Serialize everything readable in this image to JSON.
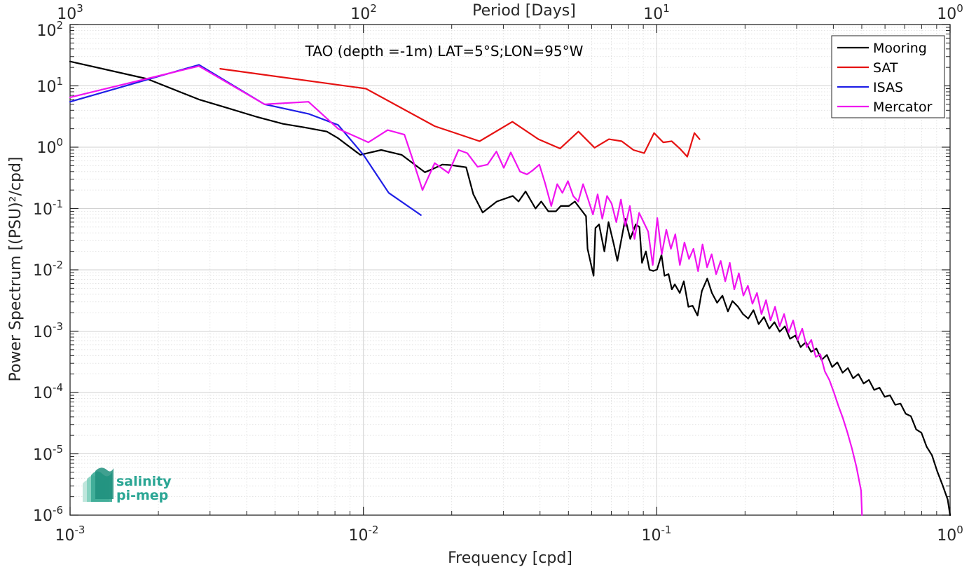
{
  "chart_data": {
    "type": "line",
    "title": "TAO (depth =-1m) LAT=5°S;LON=95°W",
    "xlabel": "Frequency [cpd]",
    "ylabel": "Power Spectrum [(PSU)²/cpd]",
    "top_xlabel": "Period [Days]",
    "xscale": "log",
    "yscale": "log",
    "xlim": [
      0.001,
      1
    ],
    "ylim": [
      1e-06,
      100
    ],
    "grid": true,
    "minor_grid": true,
    "legend_position": "top-right",
    "x_tick_labels": [
      {
        "base": "10",
        "exp": "-3"
      },
      {
        "base": "10",
        "exp": "-2"
      },
      {
        "base": "10",
        "exp": "-1"
      },
      {
        "base": "10",
        "exp": "0"
      }
    ],
    "top_tick_labels": [
      {
        "base": "10",
        "exp": "3"
      },
      {
        "base": "10",
        "exp": "2"
      },
      {
        "base": "10",
        "exp": "1"
      },
      {
        "base": "10",
        "exp": "0"
      }
    ],
    "y_tick_labels": [
      {
        "base": "10",
        "exp": "-6"
      },
      {
        "base": "10",
        "exp": "-5"
      },
      {
        "base": "10",
        "exp": "-4"
      },
      {
        "base": "10",
        "exp": "-3"
      },
      {
        "base": "10",
        "exp": "-2"
      },
      {
        "base": "10",
        "exp": "-1"
      },
      {
        "base": "10",
        "exp": "0"
      },
      {
        "base": "10",
        "exp": "1"
      },
      {
        "base": "10",
        "exp": "2"
      }
    ],
    "series": [
      {
        "name": "Mooring",
        "color": "#000000",
        "x": [
          0.001,
          0.00183,
          0.00275,
          0.00336,
          0.00435,
          0.00532,
          0.0063,
          0.0075,
          0.0082,
          0.00975,
          0.0115,
          0.0135,
          0.0162,
          0.0172,
          0.0186,
          0.0199,
          0.0224,
          0.0237,
          0.0255,
          0.0285,
          0.0323,
          0.0338,
          0.0357,
          0.0386,
          0.0404,
          0.0427,
          0.0453,
          0.0471,
          0.0502,
          0.0526,
          0.0548,
          0.0574,
          0.0581,
          0.0609,
          0.0618,
          0.0636,
          0.0663,
          0.0685,
          0.0714,
          0.0734,
          0.0753,
          0.0781,
          0.0812,
          0.0848,
          0.0873,
          0.0891,
          0.0918,
          0.0945,
          0.0973,
          0.1002,
          0.1038,
          0.1063,
          0.1097,
          0.1126,
          0.1152,
          0.1198,
          0.1237,
          0.1282,
          0.1325,
          0.1378,
          0.1425,
          0.1486,
          0.1542,
          0.1606,
          0.1675,
          0.1748,
          0.1812,
          0.1893,
          0.1968,
          0.2051,
          0.2137,
          0.2226,
          0.2321,
          0.2418,
          0.2519,
          0.2625,
          0.2734,
          0.2848,
          0.2968,
          0.3094,
          0.3224,
          0.3359,
          0.3501,
          0.3648,
          0.3802,
          0.3962,
          0.4128,
          0.4302,
          0.4484,
          0.4672,
          0.4869,
          0.5074,
          0.5288,
          0.5511,
          0.5743,
          0.5985,
          0.6237,
          0.65,
          0.6773,
          0.7058,
          0.7355,
          0.7664,
          0.7987,
          0.8323,
          0.8674,
          0.904,
          0.9421,
          0.9817,
          1.0
        ],
        "y": [
          25,
          13,
          6,
          4.5,
          3.1,
          2.4,
          2.1,
          1.8,
          1.4,
          0.75,
          0.9,
          0.75,
          0.39,
          0.44,
          0.52,
          0.51,
          0.47,
          0.17,
          0.086,
          0.13,
          0.16,
          0.13,
          0.19,
          0.1,
          0.13,
          0.09,
          0.09,
          0.11,
          0.11,
          0.13,
          0.1,
          0.075,
          0.022,
          0.008,
          0.048,
          0.055,
          0.02,
          0.06,
          0.026,
          0.014,
          0.027,
          0.068,
          0.032,
          0.055,
          0.05,
          0.013,
          0.02,
          0.01,
          0.0096,
          0.0101,
          0.0175,
          0.008,
          0.0085,
          0.0048,
          0.0058,
          0.0042,
          0.0065,
          0.0025,
          0.0026,
          0.0018,
          0.0045,
          0.0072,
          0.0042,
          0.0029,
          0.0038,
          0.0021,
          0.0031,
          0.0025,
          0.0019,
          0.0016,
          0.0022,
          0.0013,
          0.0017,
          0.0011,
          0.0014,
          0.00098,
          0.0012,
          0.00075,
          0.00085,
          0.00055,
          0.00066,
          0.00046,
          0.00052,
          0.00034,
          0.00041,
          0.00026,
          0.00031,
          0.00021,
          0.00025,
          0.00017,
          0.0002,
          0.00014,
          0.00016,
          0.00011,
          0.00012,
          8.5e-05,
          9e-05,
          6.3e-05,
          6.6e-05,
          4.5e-05,
          4.1e-05,
          2.5e-05,
          2.2e-05,
          1.3e-05,
          9.5e-06,
          5.2e-06,
          3.1e-06,
          1.8e-06,
          1e-06
        ]
      },
      {
        "name": "SAT",
        "color": "#e61212",
        "x": [
          0.00325,
          0.0102,
          0.0175,
          0.0249,
          0.0322,
          0.0395,
          0.0468,
          0.0541,
          0.0614,
          0.0687,
          0.076,
          0.0833,
          0.0906,
          0.0979,
          0.1052,
          0.1125,
          0.1198,
          0.1271,
          0.1344,
          0.14
        ],
        "y": [
          19,
          9.0,
          2.2,
          1.25,
          2.6,
          1.35,
          0.95,
          1.8,
          0.98,
          1.35,
          1.25,
          0.9,
          0.8,
          1.7,
          1.2,
          1.25,
          0.95,
          0.7,
          1.7,
          1.35
        ]
      },
      {
        "name": "ISAS",
        "color": "#1f1fe6",
        "x": [
          0.001,
          0.00275,
          0.0046,
          0.0065,
          0.0082,
          0.01,
          0.0122,
          0.0157
        ],
        "y": [
          5.5,
          22,
          5.0,
          3.5,
          2.3,
          0.75,
          0.18,
          0.078
        ]
      },
      {
        "name": "Mercator",
        "color": "#f014f0",
        "x": [
          0.001,
          0.00275,
          0.0046,
          0.0065,
          0.0082,
          0.0104,
          0.0121,
          0.0138,
          0.0147,
          0.0159,
          0.0175,
          0.0195,
          0.0211,
          0.0226,
          0.0245,
          0.0265,
          0.0284,
          0.0301,
          0.0318,
          0.0342,
          0.0361,
          0.0378,
          0.0398,
          0.0416,
          0.0437,
          0.0458,
          0.0477,
          0.0498,
          0.0519,
          0.054,
          0.0561,
          0.0584,
          0.0606,
          0.0629,
          0.0652,
          0.0677,
          0.0702,
          0.0728,
          0.0755,
          0.0782,
          0.081,
          0.084,
          0.0871,
          0.0902,
          0.0935,
          0.0969,
          0.1004,
          0.104,
          0.1078,
          0.1117,
          0.1157,
          0.1199,
          0.1243,
          0.1288,
          0.1334,
          0.1383,
          0.1433,
          0.1485,
          0.1539,
          0.1594,
          0.1652,
          0.1712,
          0.1774,
          0.1838,
          0.1905,
          0.1974,
          0.2045,
          0.2119,
          0.2196,
          0.2275,
          0.2358,
          0.2443,
          0.2531,
          0.2623,
          0.2718,
          0.2816,
          0.2918,
          0.3024,
          0.3133,
          0.3246,
          0.3364,
          0.3485,
          0.3612,
          0.3742,
          0.3877,
          0.4018,
          0.4163,
          0.4314,
          0.447,
          0.4632,
          0.48,
          0.4973,
          0.501
        ],
        "y": [
          6.5,
          21,
          5.0,
          5.5,
          2.0,
          1.2,
          1.9,
          1.6,
          0.65,
          0.2,
          0.55,
          0.38,
          0.9,
          0.8,
          0.48,
          0.52,
          0.85,
          0.46,
          0.82,
          0.4,
          0.36,
          0.42,
          0.52,
          0.26,
          0.11,
          0.25,
          0.18,
          0.28,
          0.16,
          0.13,
          0.25,
          0.14,
          0.08,
          0.17,
          0.068,
          0.16,
          0.12,
          0.06,
          0.14,
          0.052,
          0.11,
          0.032,
          0.085,
          0.06,
          0.042,
          0.012,
          0.07,
          0.018,
          0.045,
          0.022,
          0.038,
          0.012,
          0.028,
          0.015,
          0.022,
          0.0095,
          0.026,
          0.011,
          0.018,
          0.0085,
          0.014,
          0.0065,
          0.013,
          0.0048,
          0.0088,
          0.0038,
          0.0055,
          0.0028,
          0.0042,
          0.0019,
          0.0032,
          0.0015,
          0.0025,
          0.0012,
          0.0019,
          0.00095,
          0.0015,
          0.00072,
          0.0011,
          0.00055,
          0.00072,
          0.00038,
          0.00042,
          0.00022,
          0.00016,
          0.0001,
          6e-05,
          3.8e-05,
          2.2e-05,
          1.2e-05,
          6e-06,
          2.5e-06,
          1e-06
        ]
      }
    ],
    "logo": {
      "line1": "salinity",
      "line2": "pi-mep"
    }
  }
}
